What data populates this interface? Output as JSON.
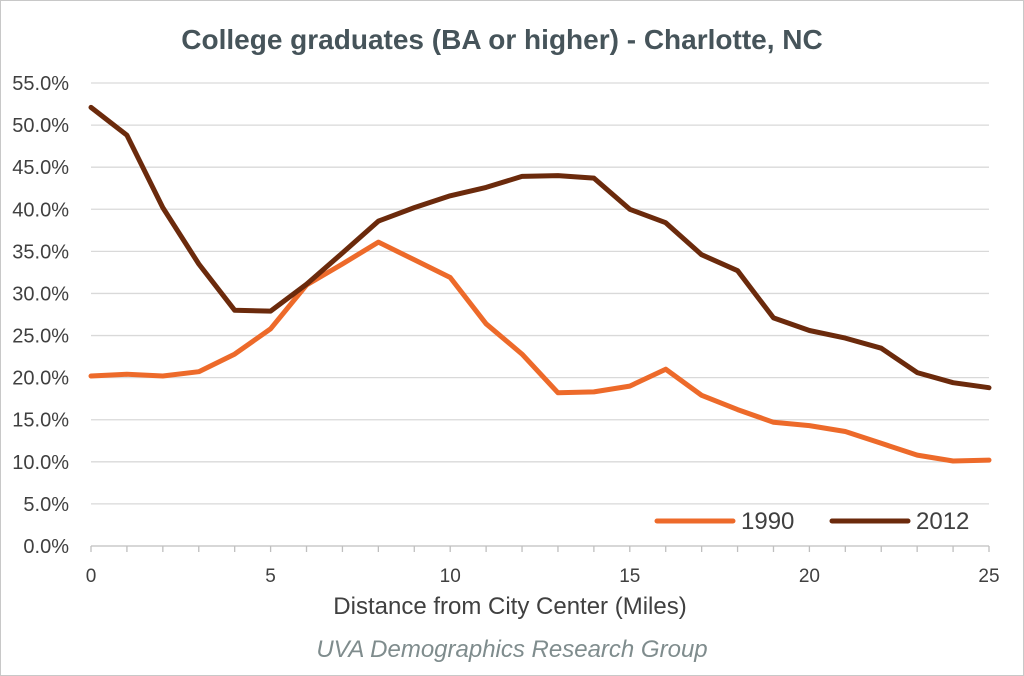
{
  "chart_data": {
    "type": "line",
    "title": "College graduates (BA or higher) - Charlotte, NC",
    "xlabel": "Distance from City Center (Miles)",
    "ylabel": "",
    "source": "UVA Demographics Research Group",
    "x": [
      0,
      1,
      2,
      3,
      4,
      5,
      6,
      7,
      8,
      9,
      10,
      11,
      12,
      13,
      14,
      15,
      16,
      17,
      18,
      19,
      20,
      21,
      22,
      23,
      24,
      25
    ],
    "xlim": [
      0,
      25
    ],
    "ylim": [
      0,
      55
    ],
    "x_ticks": [
      0,
      5,
      10,
      15,
      20,
      25
    ],
    "y_ticks": [
      "0.0%",
      "5.0%",
      "10.0%",
      "15.0%",
      "20.0%",
      "25.0%",
      "30.0%",
      "35.0%",
      "40.0%",
      "45.0%",
      "50.0%",
      "55.0%"
    ],
    "grid": "horizontal",
    "legend_position": "bottom-right",
    "series": [
      {
        "name": "1990",
        "color": "#ed6a2a",
        "values": [
          20.2,
          20.4,
          20.2,
          20.7,
          22.8,
          25.8,
          31.0,
          33.5,
          36.1,
          34.0,
          31.9,
          26.4,
          22.8,
          18.2,
          18.3,
          19.0,
          21.0,
          17.9,
          16.2,
          14.7,
          14.3,
          13.6,
          12.2,
          10.8,
          10.1,
          10.2
        ]
      },
      {
        "name": "2012",
        "color": "#6b2a0c",
        "values": [
          52.1,
          48.8,
          40.2,
          33.5,
          28.0,
          27.9,
          31.1,
          34.8,
          38.6,
          40.2,
          41.6,
          42.6,
          43.9,
          44.0,
          43.7,
          40.0,
          38.4,
          34.6,
          32.7,
          27.1,
          25.6,
          24.7,
          23.5,
          20.6,
          19.4,
          18.8
        ]
      }
    ]
  }
}
